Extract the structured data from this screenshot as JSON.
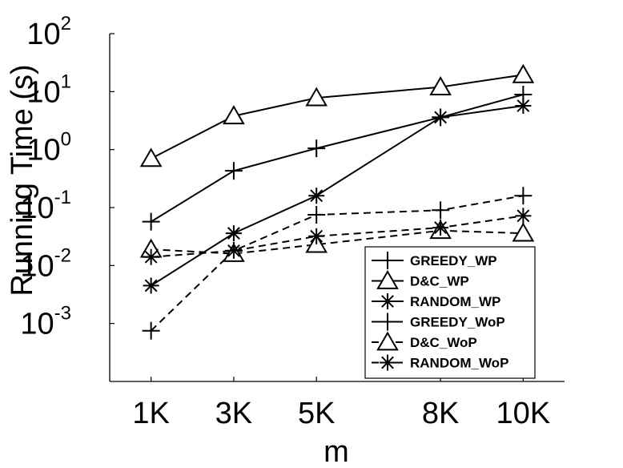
{
  "chart_data": {
    "type": "line",
    "xlabel": "m",
    "ylabel": "Running Time (s)",
    "x": [
      1,
      3,
      5,
      8,
      10
    ],
    "x_tick_labels": [
      "1K",
      "3K",
      "5K",
      "8K",
      "10K"
    ],
    "xlim": [
      0,
      11
    ],
    "ylog": true,
    "ylim": [
      0.0001,
      100
    ],
    "y_ticks": [
      {
        "base": "10",
        "exp": "2",
        "value": 100
      },
      {
        "base": "10",
        "exp": "1",
        "value": 10
      },
      {
        "base": "10",
        "exp": "0",
        "value": 1
      },
      {
        "base": "10",
        "exp": "-1",
        "value": 0.1
      },
      {
        "base": "10",
        "exp": "-2",
        "value": 0.01
      },
      {
        "base": "10",
        "exp": "-3",
        "value": 0.001
      }
    ],
    "grid": false,
    "legend_position": "bottom-right",
    "series": [
      {
        "name": "GREEDY_WP",
        "marker": "plus",
        "dash": "solid",
        "values": [
          0.057,
          0.43,
          1.05,
          3.6,
          8.9
        ]
      },
      {
        "name": "D&C_WP",
        "marker": "triangle",
        "dash": "solid",
        "values": [
          0.7,
          3.8,
          7.8,
          12.0,
          19.5
        ]
      },
      {
        "name": "RANDOM_WP",
        "marker": "asterisk",
        "dash": "solid",
        "values": [
          0.0045,
          0.036,
          0.16,
          3.6,
          5.7
        ]
      },
      {
        "name": "GREEDY_WoP",
        "marker": "plus",
        "dash": "dashed",
        "values": [
          0.00075,
          0.018,
          0.075,
          0.09,
          0.16
        ]
      },
      {
        "name": "D&C_WoP",
        "marker": "triangle",
        "dash": "dashed",
        "values": [
          0.019,
          0.016,
          0.023,
          0.04,
          0.036
        ]
      },
      {
        "name": "RANDOM_WoP",
        "marker": "asterisk",
        "dash": "dashed",
        "values": [
          0.014,
          0.018,
          0.032,
          0.045,
          0.072
        ]
      }
    ]
  }
}
